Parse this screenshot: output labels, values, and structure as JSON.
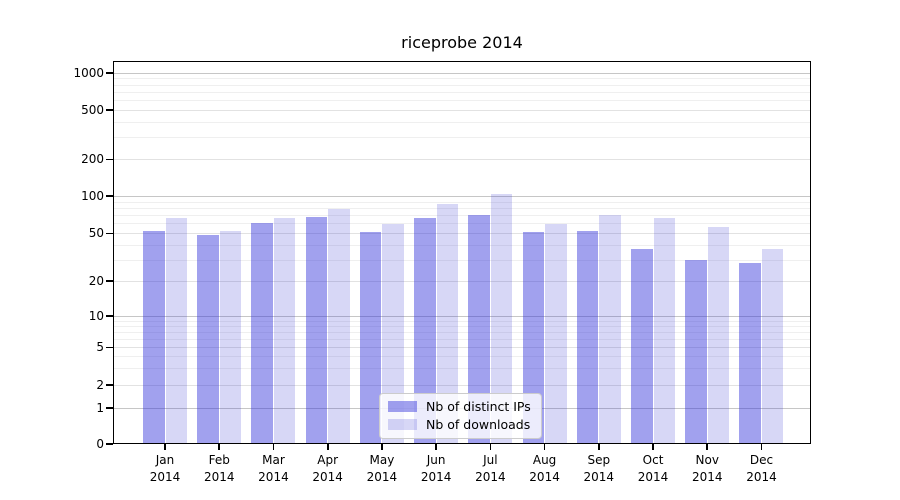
{
  "chart_data": {
    "type": "bar",
    "title": "riceprobe 2014",
    "year_label": "2014",
    "categories": [
      "Jan",
      "Feb",
      "Mar",
      "Apr",
      "May",
      "Jun",
      "Jul",
      "Aug",
      "Sep",
      "Oct",
      "Nov",
      "Dec"
    ],
    "series": [
      {
        "name": "Nb of distinct IPs",
        "color": "#a2a2ee",
        "values": [
          52,
          48,
          61,
          68,
          51,
          67,
          70,
          51,
          52,
          37,
          30,
          28
        ]
      },
      {
        "name": "Nb of downloads",
        "color": "#d8d8f6",
        "values": [
          67,
          52,
          66,
          79,
          59,
          86,
          104,
          59,
          70,
          67,
          56,
          37
        ]
      }
    ],
    "xlabel": "",
    "ylabel": "",
    "yscale": "log-like with 0 baseline",
    "y_ticks": [
      0,
      1,
      2,
      5,
      10,
      20,
      50,
      100,
      200,
      500,
      1000
    ],
    "ylim": [
      0,
      1400
    ],
    "grid": "both (major and minor horizontal gridlines)",
    "legend_position": "lower center",
    "colors": {
      "background": "#ffffff",
      "major_gridline": "#c6c6c6",
      "mid_gridline": "#e2e2e2",
      "minor_gridline": "#efefef",
      "axis": "#000000",
      "legend_border": "#cccccc"
    }
  }
}
